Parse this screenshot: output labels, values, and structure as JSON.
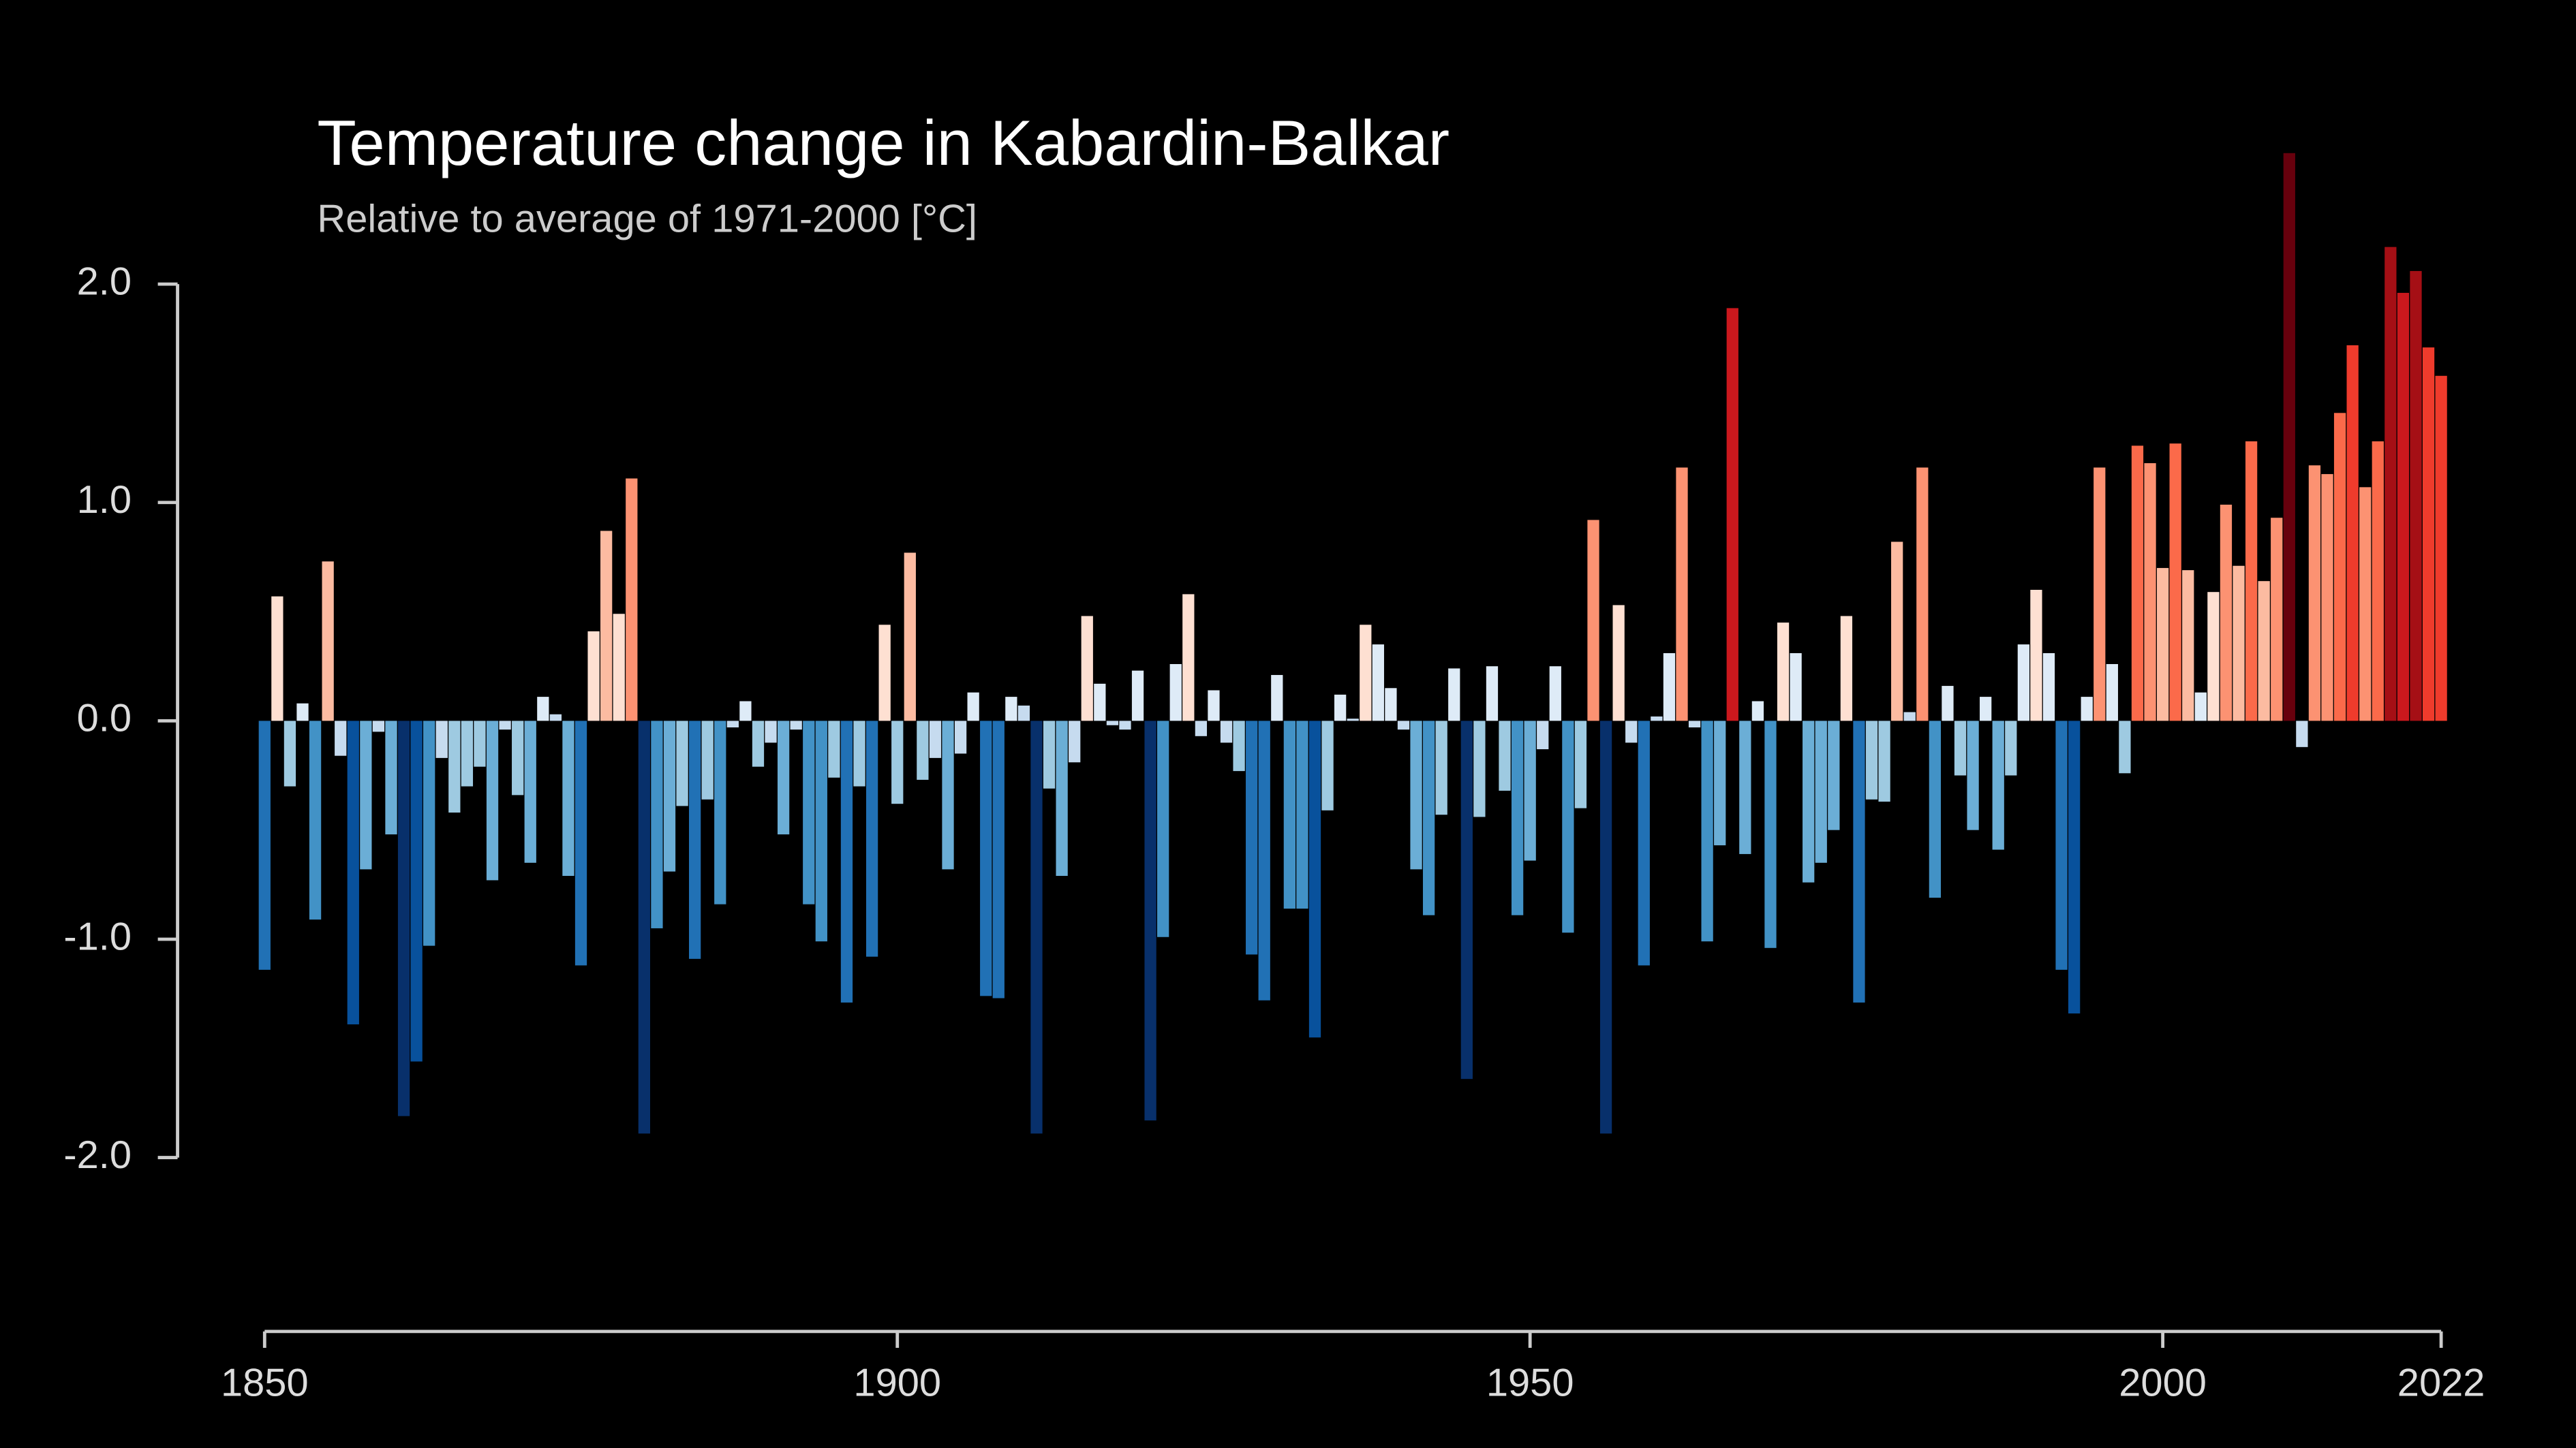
{
  "chart_data": {
    "type": "bar",
    "title": "Temperature change in Kabardin-Balkar",
    "subtitle": "Relative to average of 1971-2000  [°C]",
    "x": [
      1850,
      1851,
      1852,
      1853,
      1854,
      1855,
      1856,
      1857,
      1858,
      1859,
      1860,
      1861,
      1862,
      1863,
      1864,
      1865,
      1866,
      1867,
      1868,
      1869,
      1870,
      1871,
      1872,
      1873,
      1874,
      1875,
      1876,
      1877,
      1878,
      1879,
      1880,
      1881,
      1882,
      1883,
      1884,
      1885,
      1886,
      1887,
      1888,
      1889,
      1890,
      1891,
      1892,
      1893,
      1894,
      1895,
      1896,
      1897,
      1898,
      1899,
      1900,
      1901,
      1902,
      1903,
      1904,
      1905,
      1906,
      1907,
      1908,
      1909,
      1910,
      1911,
      1912,
      1913,
      1914,
      1915,
      1916,
      1917,
      1918,
      1919,
      1920,
      1921,
      1922,
      1923,
      1924,
      1925,
      1926,
      1927,
      1928,
      1929,
      1930,
      1931,
      1932,
      1933,
      1934,
      1935,
      1936,
      1937,
      1938,
      1939,
      1940,
      1941,
      1942,
      1943,
      1944,
      1945,
      1946,
      1947,
      1948,
      1949,
      1950,
      1951,
      1952,
      1953,
      1954,
      1955,
      1956,
      1957,
      1958,
      1959,
      1960,
      1961,
      1962,
      1963,
      1964,
      1965,
      1966,
      1967,
      1968,
      1969,
      1970,
      1971,
      1972,
      1973,
      1974,
      1975,
      1976,
      1977,
      1978,
      1979,
      1980,
      1981,
      1982,
      1983,
      1984,
      1985,
      1986,
      1987,
      1988,
      1989,
      1990,
      1991,
      1992,
      1993,
      1994,
      1995,
      1996,
      1997,
      1998,
      1999,
      2000,
      2001,
      2002,
      2003,
      2004,
      2005,
      2006,
      2007,
      2008,
      2009,
      2010,
      2011,
      2012,
      2013,
      2014,
      2015,
      2016,
      2017,
      2018,
      2019,
      2020,
      2021,
      2022
    ],
    "values": [
      -1.14,
      0.57,
      -0.3,
      0.08,
      -0.91,
      0.73,
      -0.16,
      -1.39,
      -0.68,
      -0.05,
      -0.52,
      -1.81,
      -1.56,
      -1.03,
      -0.17,
      -0.42,
      -0.3,
      -0.21,
      -0.73,
      -0.04,
      -0.34,
      -0.65,
      0.11,
      0.03,
      -0.71,
      -1.12,
      0.41,
      0.87,
      0.49,
      1.11,
      -1.89,
      -0.95,
      -0.69,
      -0.39,
      -1.09,
      -0.36,
      -0.84,
      -0.03,
      0.09,
      -0.21,
      -0.1,
      -0.52,
      -0.04,
      -0.84,
      -1.01,
      -0.26,
      -1.29,
      -0.3,
      -1.08,
      0.44,
      -0.38,
      0.77,
      -0.27,
      -0.17,
      -0.68,
      -0.15,
      0.13,
      -1.26,
      -1.27,
      0.11,
      0.07,
      -1.89,
      -0.31,
      -0.71,
      -0.19,
      0.48,
      0.17,
      -0.02,
      -0.04,
      0.23,
      -1.83,
      -0.99,
      0.26,
      0.58,
      -0.07,
      0.14,
      -0.1,
      -0.23,
      -1.07,
      -1.28,
      0.21,
      -0.86,
      -0.86,
      -1.45,
      -0.41,
      0.12,
      0.01,
      0.44,
      0.35,
      0.15,
      -0.04,
      -0.68,
      -0.89,
      -0.43,
      0.24,
      -1.64,
      -0.44,
      0.25,
      -0.32,
      -0.89,
      -0.64,
      -0.13,
      0.25,
      -0.97,
      -0.4,
      0.92,
      -1.89,
      0.53,
      -0.1,
      -1.12,
      0.02,
      0.31,
      1.16,
      -0.03,
      -1.01,
      -0.57,
      1.89,
      -0.61,
      0.09,
      -1.04,
      0.45,
      0.31,
      -0.74,
      -0.65,
      -0.5,
      0.48,
      -1.29,
      -0.36,
      -0.37,
      0.82,
      0.04,
      1.16,
      -0.81,
      0.16,
      -0.25,
      -0.5,
      0.11,
      -0.59,
      -0.25,
      0.35,
      0.6,
      0.31,
      -1.14,
      -1.34,
      0.11,
      1.16,
      0.26,
      -0.24,
      1.26,
      1.18,
      0.7,
      1.27,
      0.69,
      0.13,
      0.59,
      0.99,
      0.71,
      1.28,
      0.64,
      0.93,
      2.6,
      -0.12,
      1.17,
      1.13,
      1.41,
      1.72,
      1.07,
      1.28,
      2.17,
      1.96,
      2.06,
      1.71,
      1.58
    ],
    "colors": [
      "#08306b",
      "#08519c",
      "#2171b5",
      "#4292c6",
      "#6baed6",
      "#9ecae1",
      "#c6dbef",
      "#deebf7",
      "#fee0d2",
      "#fcbba1",
      "#fc9272",
      "#fb6a4a",
      "#ef3b2c",
      "#cb181d",
      "#a50f15",
      "#67000d"
    ],
    "xlim": [
      1850,
      2022
    ],
    "xticks": [
      1850,
      1900,
      1950,
      2000,
      2022
    ],
    "ylim": [
      -2.3,
      2.85
    ],
    "yticks": [
      {
        "value": -2,
        "label": "-2.0"
      },
      {
        "value": -1,
        "label": "-1.0"
      },
      {
        "value": 0,
        "label": "0.0"
      },
      {
        "value": 1,
        "label": "1.0"
      },
      {
        "value": 2,
        "label": "2.0"
      }
    ],
    "grid": false
  }
}
